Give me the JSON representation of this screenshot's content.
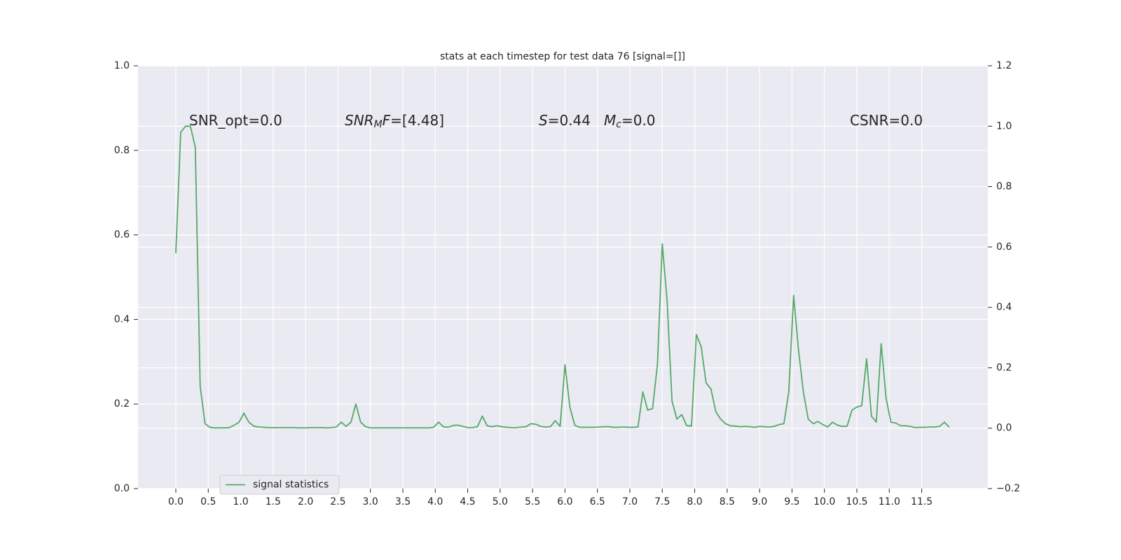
{
  "chart_data": {
    "type": "line",
    "title": "stats at each timestep for test data 76 [signal=[]]",
    "annotations": [
      {
        "parts": [
          {
            "text": "SNR_opt=0.0"
          }
        ]
      },
      {
        "parts": [
          {
            "text": "SNR",
            "style": "italic"
          },
          {
            "text": "M",
            "style": "italic-sub"
          },
          {
            "text": "F",
            "style": "italic"
          },
          {
            "text": "=[4.48]"
          }
        ]
      },
      {
        "parts": [
          {
            "text": "S",
            "style": "italic"
          },
          {
            "text": "=0.44"
          }
        ]
      },
      {
        "parts": [
          {
            "text": "M",
            "style": "italic"
          },
          {
            "text": "c",
            "style": "italic-sub"
          },
          {
            "text": "=0.0"
          }
        ]
      },
      {
        "parts": [
          {
            "text": "CSNR=0.0"
          }
        ]
      }
    ],
    "x": [
      0,
      0.075,
      0.15,
      0.225,
      0.3,
      0.375,
      0.45,
      0.525,
      0.6,
      0.675,
      0.75,
      0.825,
      0.9,
      0.975,
      1.05,
      1.125,
      1.2,
      1.275,
      1.35,
      1.425,
      1.5,
      1.575,
      1.65,
      1.725,
      1.8,
      1.875,
      1.95,
      2.025,
      2.1,
      2.175,
      2.25,
      2.325,
      2.4,
      2.475,
      2.55,
      2.625,
      2.7,
      2.775,
      2.85,
      2.925,
      3,
      3.075,
      3.15,
      3.225,
      3.3,
      3.375,
      3.45,
      3.525,
      3.6,
      3.675,
      3.75,
      3.825,
      3.9,
      3.975,
      4.05,
      4.125,
      4.2,
      4.275,
      4.35,
      4.425,
      4.5,
      4.575,
      4.65,
      4.725,
      4.8,
      4.875,
      4.95,
      5.025,
      5.1,
      5.175,
      5.25,
      5.325,
      5.4,
      5.475,
      5.55,
      5.625,
      5.7,
      5.775,
      5.85,
      5.925,
      6,
      6.075,
      6.15,
      6.225,
      6.3,
      6.375,
      6.45,
      6.525,
      6.6,
      6.675,
      6.75,
      6.825,
      6.9,
      6.975,
      7.05,
      7.125,
      7.2,
      7.275,
      7.35,
      7.425,
      7.5,
      7.575,
      7.65,
      7.725,
      7.8,
      7.875,
      7.95,
      8.025,
      8.1,
      8.175,
      8.25,
      8.325,
      8.4,
      8.475,
      8.55,
      8.625,
      8.7,
      8.775,
      8.85,
      8.925,
      9,
      9.075,
      9.15,
      9.225,
      9.3,
      9.375,
      9.45,
      9.525,
      9.6,
      9.675,
      9.75,
      9.825,
      9.9,
      9.975,
      10.05,
      10.125,
      10.2,
      10.275,
      10.35,
      10.425,
      10.5,
      10.575,
      10.65,
      10.725,
      10.8,
      10.875,
      10.95,
      11.025,
      11.1,
      11.175,
      11.25,
      11.325,
      11.4,
      11.475,
      11.55,
      11.625,
      11.7,
      11.775,
      11.85,
      11.925
    ],
    "series": [
      {
        "name": "signal statistics",
        "color": "#55a868",
        "axis": "y2",
        "values": [
          0.58,
          0.98,
          1.0,
          1.0,
          0.93,
          0.14,
          0.015,
          0.003,
          0.001,
          0.001,
          0.001,
          0.002,
          0.01,
          0.02,
          0.05,
          0.02,
          0.007,
          0.004,
          0.003,
          0.002,
          0.002,
          0.002,
          0.002,
          0.002,
          0.002,
          0.001,
          0.001,
          0.001,
          0.002,
          0.002,
          0.002,
          0.001,
          0.002,
          0.004,
          0.02,
          0.006,
          0.02,
          0.08,
          0.02,
          0.005,
          0.001,
          0.001,
          0.001,
          0.001,
          0.001,
          0.001,
          0.001,
          0.001,
          0.001,
          0.001,
          0.001,
          0.001,
          0.001,
          0.003,
          0.02,
          0.005,
          0.003,
          0.009,
          0.01,
          0.006,
          0.002,
          0.002,
          0.005,
          0.04,
          0.008,
          0.005,
          0.008,
          0.005,
          0.003,
          0.002,
          0.002,
          0.004,
          0.005,
          0.015,
          0.013,
          0.006,
          0.004,
          0.005,
          0.025,
          0.006,
          0.21,
          0.07,
          0.01,
          0.003,
          0.003,
          0.003,
          0.003,
          0.004,
          0.005,
          0.005,
          0.003,
          0.003,
          0.004,
          0.003,
          0.003,
          0.004,
          0.12,
          0.06,
          0.065,
          0.21,
          0.61,
          0.42,
          0.09,
          0.03,
          0.045,
          0.009,
          0.007,
          0.31,
          0.27,
          0.15,
          0.13,
          0.055,
          0.03,
          0.015,
          0.008,
          0.007,
          0.005,
          0.006,
          0.005,
          0.003,
          0.006,
          0.005,
          0.004,
          0.006,
          0.012,
          0.015,
          0.12,
          0.44,
          0.26,
          0.12,
          0.03,
          0.015,
          0.022,
          0.012,
          0.004,
          0.02,
          0.01,
          0.006,
          0.007,
          0.06,
          0.07,
          0.075,
          0.23,
          0.04,
          0.02,
          0.28,
          0.1,
          0.02,
          0.017,
          0.008,
          0.008,
          0.006,
          0.002,
          0.003,
          0.003,
          0.004,
          0.004,
          0.006,
          0.02,
          0.003
        ]
      }
    ],
    "xlim": [
      -0.583,
      12.52
    ],
    "xticks": [
      {
        "value": 0,
        "label": "0.0"
      },
      0.5,
      {
        "value": 1,
        "label": "1.0"
      },
      1.5,
      {
        "value": 2,
        "label": "2.0"
      },
      2.5,
      {
        "value": 3,
        "label": "3.0"
      },
      3.5,
      {
        "value": 4,
        "label": "4.0"
      },
      4.5,
      {
        "value": 5,
        "label": "5.0"
      },
      5.5,
      {
        "value": 6,
        "label": "6.0"
      },
      6.5,
      {
        "value": 7,
        "label": "7.0"
      },
      7.5,
      {
        "value": 8,
        "label": "8.0"
      },
      8.5,
      {
        "value": 9,
        "label": "9.0"
      },
      9.5,
      {
        "value": 10,
        "label": "10.0"
      },
      10.5,
      {
        "value": 11,
        "label": "11.0"
      },
      11.5
    ],
    "ylim": [
      0,
      1
    ],
    "yticks": [
      {
        "value": 0,
        "label": "0.0"
      },
      0.2,
      0.4,
      0.6,
      0.8,
      {
        "value": 1,
        "label": "1.0"
      }
    ],
    "y2lim": [
      -0.2,
      1.2
    ],
    "y2ticks": [
      {
        "value": -0.2,
        "label": "−0.2"
      },
      {
        "value": 0,
        "label": "0.0"
      },
      0.2,
      0.4,
      0.6,
      0.8,
      {
        "value": 1,
        "label": "1.0"
      },
      1.2
    ],
    "grid": true,
    "legend_loc": "lower left"
  }
}
